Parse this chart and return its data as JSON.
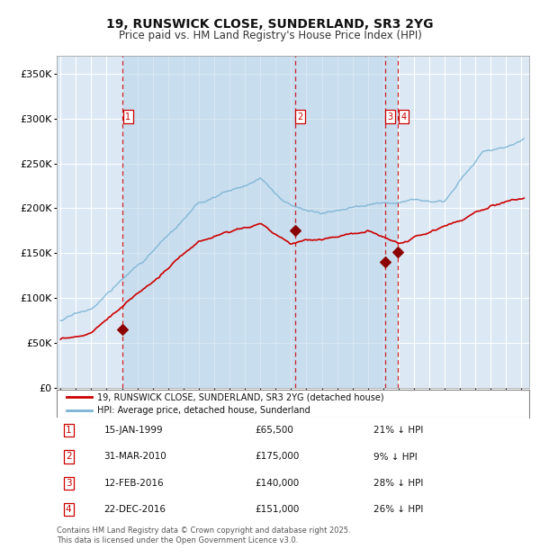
{
  "title": "19, RUNSWICK CLOSE, SUNDERLAND, SR3 2YG",
  "subtitle": "Price paid vs. HM Land Registry's House Price Index (HPI)",
  "ylim": [
    0,
    370000
  ],
  "yticks": [
    0,
    50000,
    100000,
    150000,
    200000,
    250000,
    300000,
    350000
  ],
  "background_color": "#ffffff",
  "plot_bg_color": "#dce9f5",
  "grid_color": "#ffffff",
  "hpi_color": "#7ab3d4",
  "price_color": "#cc0000",
  "sale_marker_color": "#8b0000",
  "vline_color": "#cc0000",
  "legend_label_red": "19, RUNSWICK CLOSE, SUNDERLAND, SR3 2YG (detached house)",
  "legend_label_blue": "HPI: Average price, detached house, Sunderland",
  "footer_text": "Contains HM Land Registry data © Crown copyright and database right 2025.\nThis data is licensed under the Open Government Licence v3.0.",
  "sales": [
    {
      "num": 1,
      "date_num": 1999.04,
      "price": 65500
    },
    {
      "num": 2,
      "date_num": 2010.25,
      "price": 175000
    },
    {
      "num": 3,
      "date_num": 2016.12,
      "price": 140000
    },
    {
      "num": 4,
      "date_num": 2016.97,
      "price": 151000
    }
  ],
  "table_rows": [
    {
      "num": 1,
      "date": "15-JAN-1999",
      "price": "£65,500",
      "pct": "21% ↓ HPI"
    },
    {
      "num": 2,
      "date": "31-MAR-2010",
      "price": "£175,000",
      "pct": "9% ↓ HPI"
    },
    {
      "num": 3,
      "date": "12-FEB-2016",
      "price": "£140,000",
      "pct": "28% ↓ HPI"
    },
    {
      "num": 4,
      "date": "22-DEC-2016",
      "price": "£151,000",
      "pct": "26% ↓ HPI"
    }
  ]
}
